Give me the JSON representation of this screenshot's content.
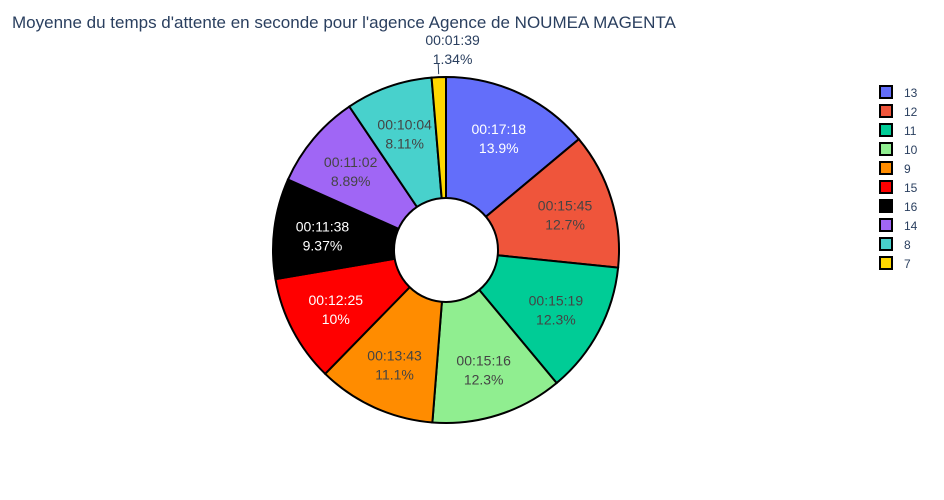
{
  "chart_data": {
    "type": "pie",
    "hole": true,
    "title": "Moyenne du temps d'attente en seconde pour l'agence Agence de NOUMEA MAGENTA",
    "sort": "descending",
    "direction": "clockwise",
    "legend_position": "right",
    "slices": [
      {
        "label": "13",
        "value": 1038,
        "time": "00:17:18",
        "percent": "13.9%",
        "color": "#636efa",
        "text_color": "#ffffff"
      },
      {
        "label": "12",
        "value": 945,
        "time": "00:15:45",
        "percent": "12.7%",
        "color": "#ef553b",
        "text_color": "#444444"
      },
      {
        "label": "11",
        "value": 919,
        "time": "00:15:19",
        "percent": "12.3%",
        "color": "#00cc96",
        "text_color": "#444444"
      },
      {
        "label": "10",
        "value": 916,
        "time": "00:15:16",
        "percent": "12.3%",
        "color": "#90ee90",
        "text_color": "#444444"
      },
      {
        "label": "9",
        "value": 823,
        "time": "00:13:43",
        "percent": "11.1%",
        "color": "#ff8c00",
        "text_color": "#444444"
      },
      {
        "label": "15",
        "value": 745,
        "time": "00:12:25",
        "percent": "10%",
        "color": "#ff0000",
        "text_color": "#ffffff"
      },
      {
        "label": "16",
        "value": 698,
        "time": "00:11:38",
        "percent": "9.37%",
        "color": "#000000",
        "text_color": "#ffffff"
      },
      {
        "label": "14",
        "value": 662,
        "time": "00:11:02",
        "percent": "8.89%",
        "color": "#a066f5",
        "text_color": "#444444"
      },
      {
        "label": "8",
        "value": 604,
        "time": "00:10:04",
        "percent": "8.11%",
        "color": "#48d1cc",
        "text_color": "#444444"
      },
      {
        "label": "7",
        "value": 99,
        "time": "00:01:39",
        "percent": "1.34%",
        "color": "#ffd700",
        "text_color": "#2a3f5f"
      }
    ]
  }
}
